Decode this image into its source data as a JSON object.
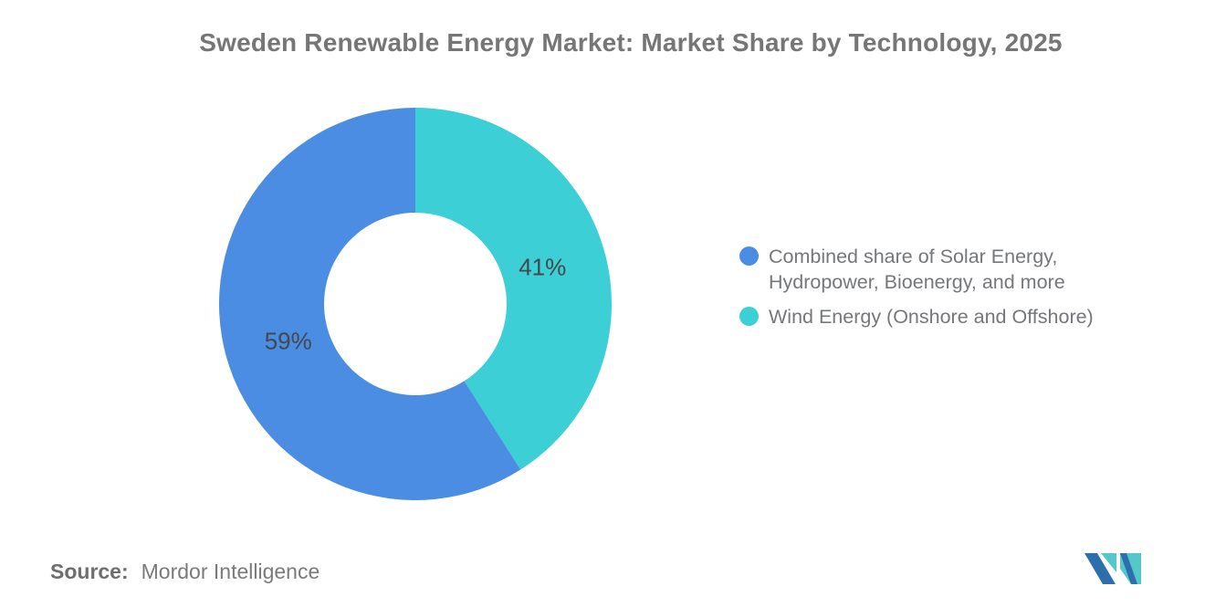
{
  "title": "Sweden Renewable Energy Market: Market Share by Technology, 2025",
  "chart_data": {
    "type": "pie",
    "subtype": "donut",
    "title": "Sweden Renewable Energy Market: Market Share by Technology, 2025",
    "legend_position": "right",
    "value_labels_color": "#45474C",
    "slices": [
      {
        "label": "Combined share of Solar Energy, Hydropower, Bioenergy, and more",
        "legend_lines": [
          "Combined share of Solar Energy,",
          "Hydropower, Bioenergy, and more"
        ],
        "value": 59,
        "display_value": "59%",
        "color": "#4A8DE2"
      },
      {
        "label": "Wind Energy (Onshore and Offshore)",
        "legend_lines": [
          "Wind Energy (Onshore and Offshore)"
        ],
        "value": 41,
        "display_value": "41%",
        "color": "#3CCFD5"
      }
    ]
  },
  "source": {
    "prefix": "Source:",
    "text": "Mordor Intelligence"
  },
  "logo": {
    "name": "mordor-intelligence-logo",
    "navy": "#2D6EAD",
    "teal": "#53C7CA"
  }
}
